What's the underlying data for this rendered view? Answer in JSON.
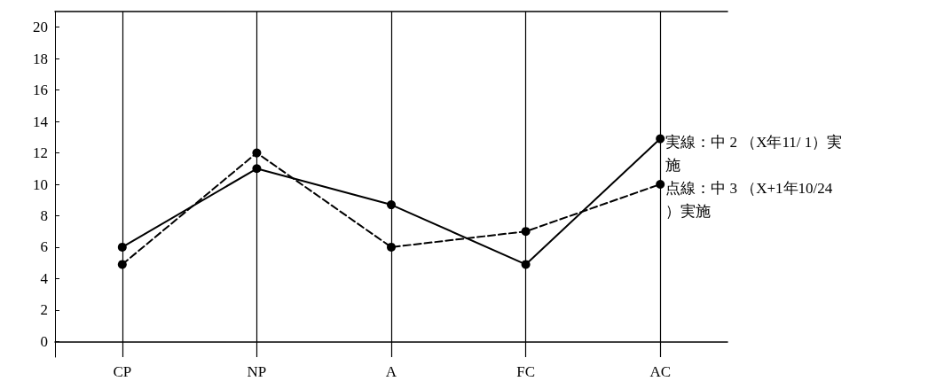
{
  "chart_data": {
    "type": "line",
    "categories": [
      "CP",
      "NP",
      "A",
      "FC",
      "AC"
    ],
    "series": [
      {
        "name": "実線：中 2 （X年11/ 1）実施",
        "color": "#000000",
        "line_style": "solid",
        "values": [
          6,
          11,
          8.7,
          4.9,
          12.9
        ]
      },
      {
        "name": "点線：中 3 （X+1年10/24）実施",
        "color": "#000000",
        "line_style": "dashed",
        "values": [
          4.9,
          12,
          6,
          7,
          10
        ]
      }
    ],
    "ylim": [
      -1,
      21
    ],
    "yticks": [
      0,
      2,
      4,
      6,
      8,
      10,
      12,
      14,
      16,
      18,
      20
    ],
    "grid": "x",
    "marker": "circle",
    "legend": false
  }
}
